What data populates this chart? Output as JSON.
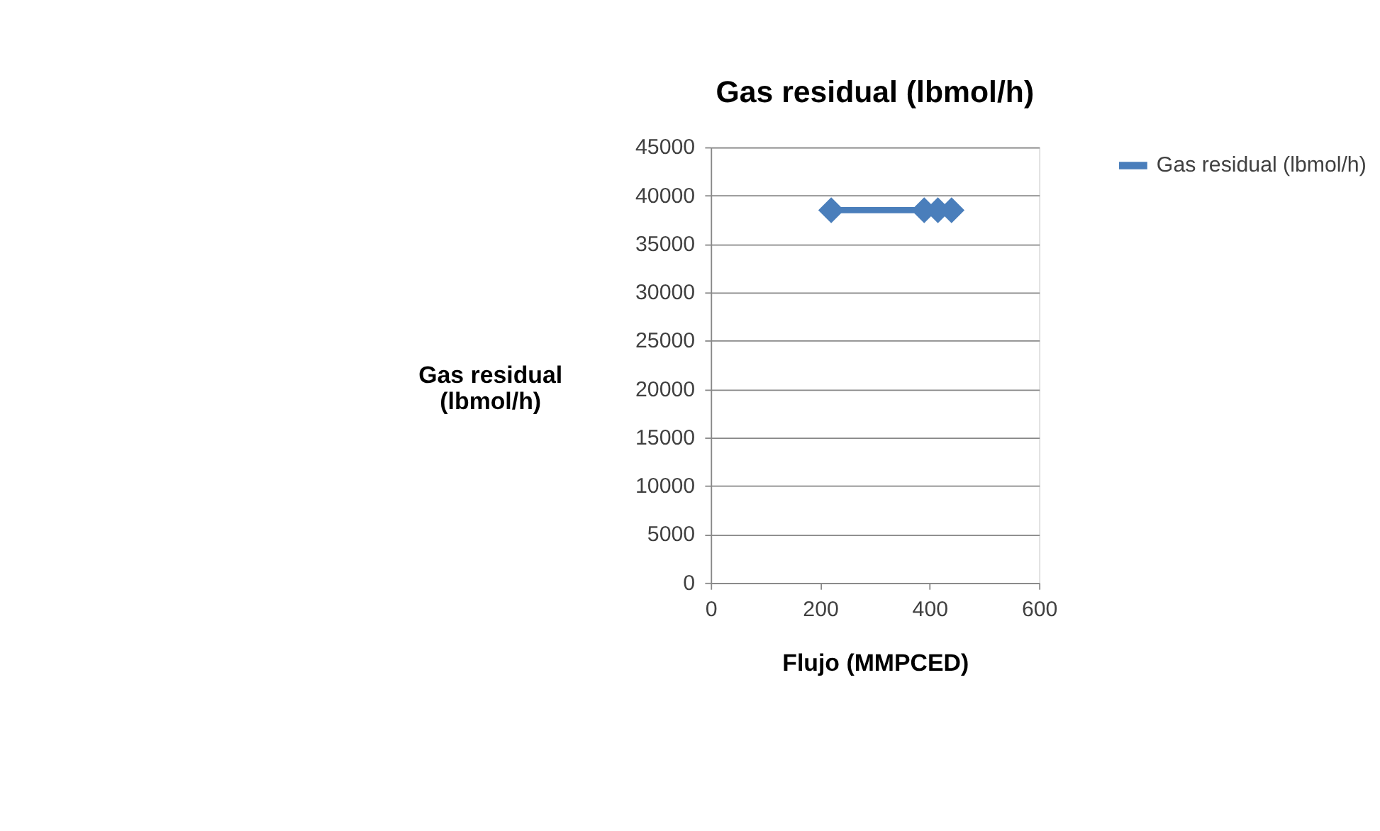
{
  "chart_data": {
    "type": "line",
    "title": "Gas residual (lbmol/h)",
    "xlabel": "Flujo (MMPCED)",
    "ylabel": "Gas residual\n(lbmol/h)",
    "series": [
      {
        "name": "Gas residual (lbmol/h)",
        "color": "#4a7ebb",
        "x": [
          220,
          390,
          415,
          440
        ],
        "values": [
          38500,
          38500,
          38500,
          38500
        ]
      }
    ],
    "xlim": [
      0,
      600
    ],
    "xticks": [
      0,
      200,
      400,
      600
    ],
    "ylim": [
      0,
      45000
    ],
    "yticks": [
      0,
      5000,
      10000,
      15000,
      20000,
      25000,
      30000,
      35000,
      40000,
      45000
    ],
    "grid": "y",
    "legend": "right",
    "marker": "diamond",
    "line_style": "solid"
  }
}
